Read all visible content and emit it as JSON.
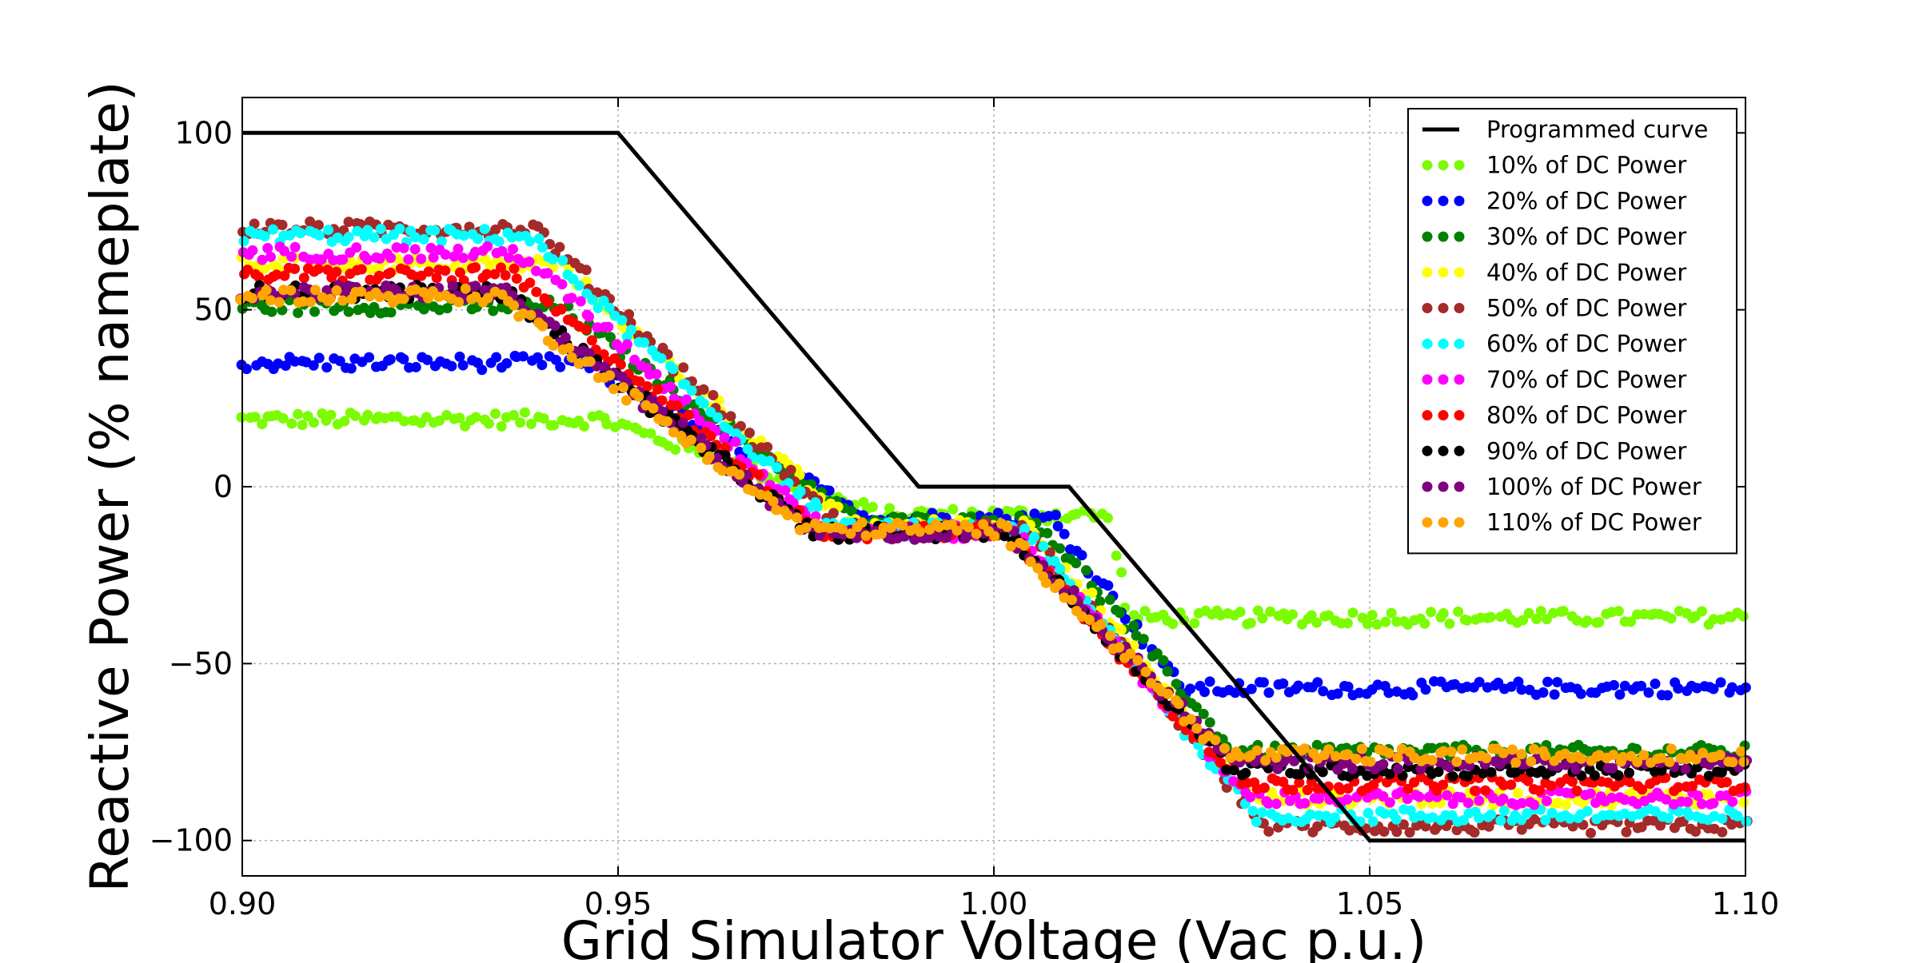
{
  "chart_data": {
    "type": "scatter",
    "title": "",
    "xlabel": "Grid Simulator Voltage (Vac p.u.)",
    "ylabel": "Reactive Power (% nameplate)",
    "xlim": [
      0.9,
      1.1
    ],
    "ylim": [
      -110,
      110
    ],
    "xticks": [
      0.9,
      0.95,
      1.0,
      1.05,
      1.1
    ],
    "xtick_labels": [
      "0.90",
      "0.95",
      "1.00",
      "1.05",
      "1.10"
    ],
    "yticks": [
      100,
      50,
      0,
      -50,
      -100
    ],
    "ytick_labels": [
      "100",
      "50",
      "0",
      "−50",
      "−100"
    ],
    "grid": true,
    "legend_position": "upper right",
    "programmed_curve": {
      "name": "Programmed curve",
      "color": "#000000",
      "x": [
        0.9,
        0.95,
        0.99,
        1.01,
        1.05,
        1.1
      ],
      "y": [
        100,
        100,
        0,
        0,
        -100,
        -100
      ]
    },
    "series": [
      {
        "name": "10% of DC Power",
        "color": "#7cfc00",
        "y_low_v": 19,
        "low_knee": 0.948,
        "mid_dip": -8,
        "mid_start": 0.985,
        "high_knee": 1.015,
        "y_high_v": -37,
        "high_end": 1.018
      },
      {
        "name": "20% of DC Power",
        "color": "#0000ff",
        "y_low_v": 35,
        "low_knee": 0.945,
        "mid_dip": -9,
        "mid_start": 0.984,
        "high_knee": 1.008,
        "y_high_v": -57,
        "high_end": 1.025
      },
      {
        "name": "30% of DC Power",
        "color": "#008000",
        "y_low_v": 51,
        "low_knee": 0.942,
        "mid_dip": -10,
        "mid_start": 0.982,
        "high_knee": 1.006,
        "y_high_v": -75,
        "high_end": 1.032
      },
      {
        "name": "40% of DC Power",
        "color": "#ffff00",
        "y_low_v": 63,
        "low_knee": 0.942,
        "mid_dip": -11,
        "mid_start": 0.981,
        "high_knee": 1.005,
        "y_high_v": -88,
        "high_end": 1.034
      },
      {
        "name": "50% of DC Power",
        "color": "#a52a2a",
        "y_low_v": 73,
        "low_knee": 0.939,
        "mid_dip": -12,
        "mid_start": 0.98,
        "high_knee": 1.004,
        "y_high_v": -96,
        "high_end": 1.036
      },
      {
        "name": "60% of DC Power",
        "color": "#00ffff",
        "y_low_v": 71,
        "low_knee": 0.938,
        "mid_dip": -12,
        "mid_start": 0.979,
        "high_knee": 1.004,
        "y_high_v": -93,
        "high_end": 1.035
      },
      {
        "name": "70% of DC Power",
        "color": "#ff00ff",
        "y_low_v": 66,
        "low_knee": 0.937,
        "mid_dip": -13,
        "mid_start": 0.978,
        "high_knee": 1.003,
        "y_high_v": -88,
        "high_end": 1.034
      },
      {
        "name": "80% of DC Power",
        "color": "#ff0000",
        "y_low_v": 60,
        "low_knee": 0.936,
        "mid_dip": -13,
        "mid_start": 0.977,
        "high_knee": 1.002,
        "y_high_v": -84,
        "high_end": 1.033
      },
      {
        "name": "90% of DC Power",
        "color": "#000000",
        "y_low_v": 55,
        "low_knee": 0.935,
        "mid_dip": -13,
        "mid_start": 0.976,
        "high_knee": 1.002,
        "y_high_v": -80,
        "high_end": 1.032
      },
      {
        "name": "100% of DC Power",
        "color": "#800080",
        "y_low_v": 55,
        "low_knee": 0.935,
        "mid_dip": -13,
        "mid_start": 0.976,
        "high_knee": 1.002,
        "y_high_v": -78,
        "high_end": 1.032
      },
      {
        "name": "110% of DC Power",
        "color": "#ffa500",
        "y_low_v": 54,
        "low_knee": 0.934,
        "mid_dip": -12,
        "mid_start": 0.975,
        "high_knee": 1.001,
        "y_high_v": -76,
        "high_end": 1.031
      }
    ]
  }
}
